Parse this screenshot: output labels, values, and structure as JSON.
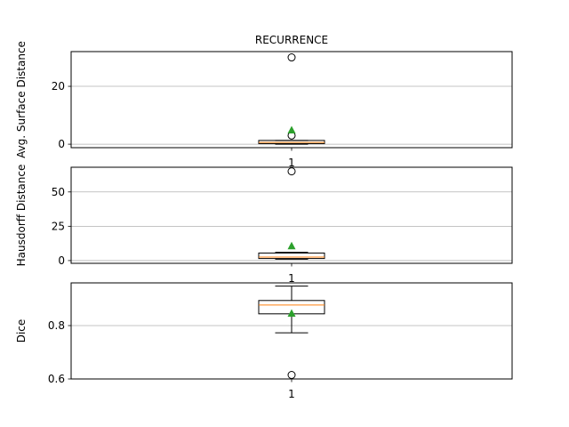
{
  "chart_data": [
    {
      "type": "box",
      "title": "RECURRENCE",
      "ylabel": "Avg. Surface Distance",
      "categories": [
        "1"
      ],
      "yticks": [
        0,
        20
      ],
      "ylim": [
        -1.2,
        32
      ],
      "grid": "y",
      "box": {
        "q1": 0.2,
        "median": 0.6,
        "q3": 1.3,
        "whisker_low": 0.0,
        "whisker_high": 1.3,
        "mean": 4.8,
        "fliers": [
          3.0,
          30.0
        ]
      }
    },
    {
      "type": "box",
      "title": "",
      "ylabel": "Hausdorff Distance",
      "categories": [
        "1"
      ],
      "yticks": [
        0,
        25,
        50
      ],
      "ylim": [
        -2,
        68
      ],
      "grid": "y",
      "box": {
        "q1": 1.5,
        "median": 2.5,
        "q3": 5.5,
        "whisker_low": 1.0,
        "whisker_high": 6.0,
        "mean": 10.5,
        "fliers": [
          65.0
        ]
      }
    },
    {
      "type": "box",
      "title": "",
      "ylabel": "Dice",
      "categories": [
        "1"
      ],
      "yticks": [
        0.6,
        0.8
      ],
      "ylim": [
        0.6,
        0.96
      ],
      "grid": "y",
      "box": {
        "q1": 0.844,
        "median": 0.877,
        "q3": 0.894,
        "whisker_low": 0.773,
        "whisker_high": 0.948,
        "mean": 0.845,
        "fliers": [
          0.615
        ]
      }
    }
  ]
}
